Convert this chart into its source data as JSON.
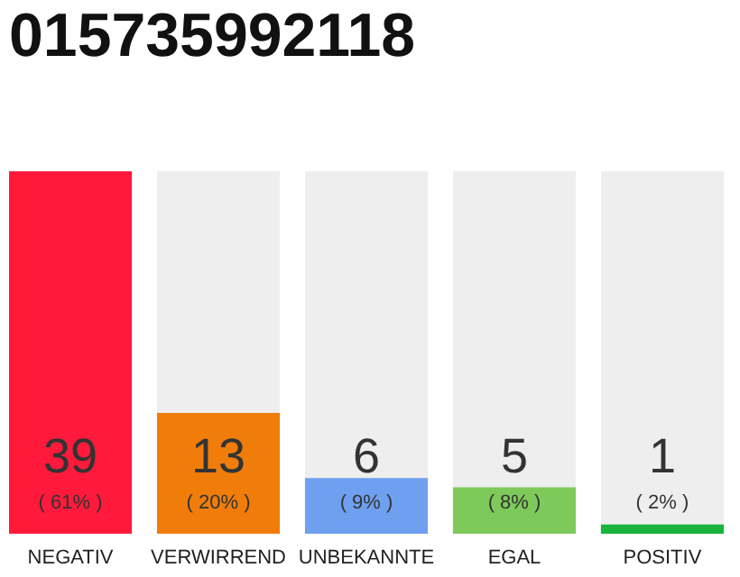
{
  "chart_data": {
    "type": "bar",
    "title": "015735992118",
    "categories": [
      "NEGATIV",
      "VERWIRREND",
      "UNBEKANNTE",
      "EGAL",
      "POSITIV"
    ],
    "values": [
      39,
      13,
      6,
      5,
      1
    ],
    "colors": [
      "#ff1a3c",
      "#f07d0a",
      "#6fa0f0",
      "#7dca5a",
      "#1ab33c"
    ],
    "data_labels": true,
    "annotations": [
      "( 61% )",
      "( 20% )",
      "( 9% )",
      "( 8% )",
      "( 2% )"
    ]
  }
}
